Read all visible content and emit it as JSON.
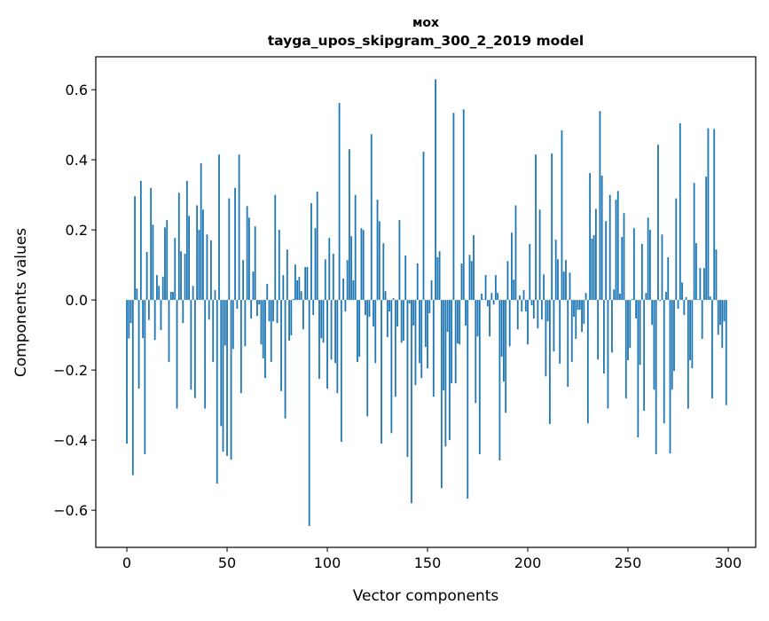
{
  "chart_data": {
    "type": "bar",
    "title": "мох",
    "subtitle": "tayga_upos_skipgram_300_2_2019 model",
    "xlabel": "Vector components",
    "ylabel": "Components values",
    "xlim": [
      -15.5,
      313.7
    ],
    "ylim": [
      -0.706,
      0.694
    ],
    "xticks": [
      0,
      50,
      100,
      150,
      200,
      250,
      300
    ],
    "xtick_labels": [
      "0",
      "50",
      "100",
      "150",
      "200",
      "250",
      "300"
    ],
    "yticks": [
      -0.6,
      -0.4,
      -0.2,
      0.0,
      0.2,
      0.4,
      0.6
    ],
    "ytick_labels": [
      "−0.6",
      "−0.4",
      "−0.2",
      "0.0",
      "0.2",
      "0.4",
      "0.6"
    ],
    "grid": false,
    "bar_color": "#1f77b4",
    "values": [
      -0.41,
      -0.11,
      -0.066,
      -0.5,
      0.296,
      0.033,
      -0.253,
      0.34,
      -0.109,
      -0.44,
      0.137,
      -0.057,
      0.32,
      0.215,
      -0.114,
      0.071,
      0.04,
      -0.086,
      0.066,
      0.207,
      0.228,
      -0.177,
      0.023,
      0.023,
      0.177,
      -0.31,
      0.306,
      0.139,
      -0.066,
      0.132,
      0.34,
      0.24,
      -0.256,
      0.04,
      -0.28,
      0.27,
      0.2,
      0.39,
      0.258,
      -0.31,
      0.187,
      -0.056,
      0.17,
      -0.177,
      0.028,
      -0.524,
      0.415,
      -0.36,
      -0.433,
      -0.13,
      -0.445,
      0.29,
      -0.456,
      -0.14,
      0.32,
      -0.025,
      0.415,
      -0.266,
      0.114,
      -0.132,
      0.268,
      0.235,
      -0.053,
      0.081,
      0.21,
      -0.046,
      -0.013,
      -0.127,
      -0.167,
      -0.223,
      0.046,
      -0.061,
      -0.177,
      -0.061,
      0.3,
      -0.066,
      0.2,
      -0.26,
      0.071,
      -0.338,
      0.144,
      -0.116,
      -0.101,
      0.003,
      0.101,
      0.056,
      0.066,
      0.025,
      -0.084,
      0.094,
      0.094,
      -0.645,
      0.276,
      -0.043,
      0.205,
      0.309,
      -0.225,
      -0.109,
      -0.122,
      0.116,
      -0.253,
      0.177,
      -0.17,
      0.132,
      -0.18,
      -0.266,
      0.562,
      -0.405,
      0.061,
      -0.033,
      0.114,
      0.43,
      0.182,
      0.056,
      0.3,
      -0.177,
      -0.162,
      0.205,
      0.2,
      -0.043,
      -0.332,
      -0.048,
      0.473,
      -0.076,
      -0.18,
      0.286,
      0.225,
      -0.41,
      0.162,
      0.025,
      -0.106,
      -0.033,
      -0.38,
      0.005,
      -0.276,
      -0.076,
      0.228,
      -0.122,
      -0.116,
      0.127,
      -0.448,
      -0.01,
      -0.58,
      -0.073,
      -0.243,
      0.104,
      -0.18,
      -0.223,
      0.423,
      -0.134,
      -0.195,
      -0.038,
      0.056,
      -0.276,
      0.63,
      0.122,
      0.139,
      -0.537,
      -0.258,
      -0.418,
      -0.091,
      -0.4,
      -0.238,
      0.534,
      -0.238,
      -0.124,
      -0.127,
      0.104,
      0.544,
      -0.073,
      -0.567,
      0.129,
      0.111,
      0.185,
      -0.294,
      -0.104,
      -0.44,
      0.018,
      0.002,
      0.071,
      -0.018,
      -0.104,
      0.02,
      -0.013,
      0.071,
      0.02,
      -0.458,
      -0.162,
      -0.233,
      -0.322,
      0.111,
      -0.132,
      0.192,
      0.058,
      0.27,
      -0.084,
      0.013,
      -0.033,
      0.028,
      -0.033,
      -0.127,
      0.16,
      -0.015,
      -0.053,
      0.415,
      -0.081,
      0.258,
      -0.056,
      0.073,
      -0.218,
      -0.061,
      -0.354,
      0.418,
      -0.147,
      0.172,
      0.116,
      -0.182,
      0.484,
      0.081,
      0.114,
      -0.248,
      0.078,
      -0.177,
      -0.048,
      -0.111,
      -0.028,
      -0.028,
      -0.091,
      -0.068,
      0.02,
      -0.352,
      0.362,
      0.175,
      0.185,
      0.26,
      -0.17,
      0.539,
      0.355,
      -0.21,
      0.225,
      -0.31,
      0.3,
      -0.15,
      0.03,
      0.286,
      0.311,
      0.018,
      0.18,
      0.248,
      -0.281,
      -0.172,
      -0.137,
      0.003,
      0.205,
      -0.053,
      -0.392,
      -0.185,
      0.16,
      -0.316,
      0.02,
      0.235,
      0.2,
      -0.071,
      -0.256,
      -0.44,
      0.443,
      -0.003,
      0.187,
      -0.352,
      0.023,
      0.122,
      -0.438,
      -0.256,
      -0.203,
      0.29,
      -0.025,
      0.504,
      0.05,
      -0.043,
      0.008,
      -0.31,
      -0.172,
      -0.195,
      0.334,
      0.162,
      0.002,
      0.091,
      -0.111,
      0.091,
      0.352,
      0.49,
      0.01,
      -0.281,
      0.488,
      0.144,
      -0.099,
      -0.071,
      -0.137,
      -0.061,
      -0.3
    ]
  }
}
